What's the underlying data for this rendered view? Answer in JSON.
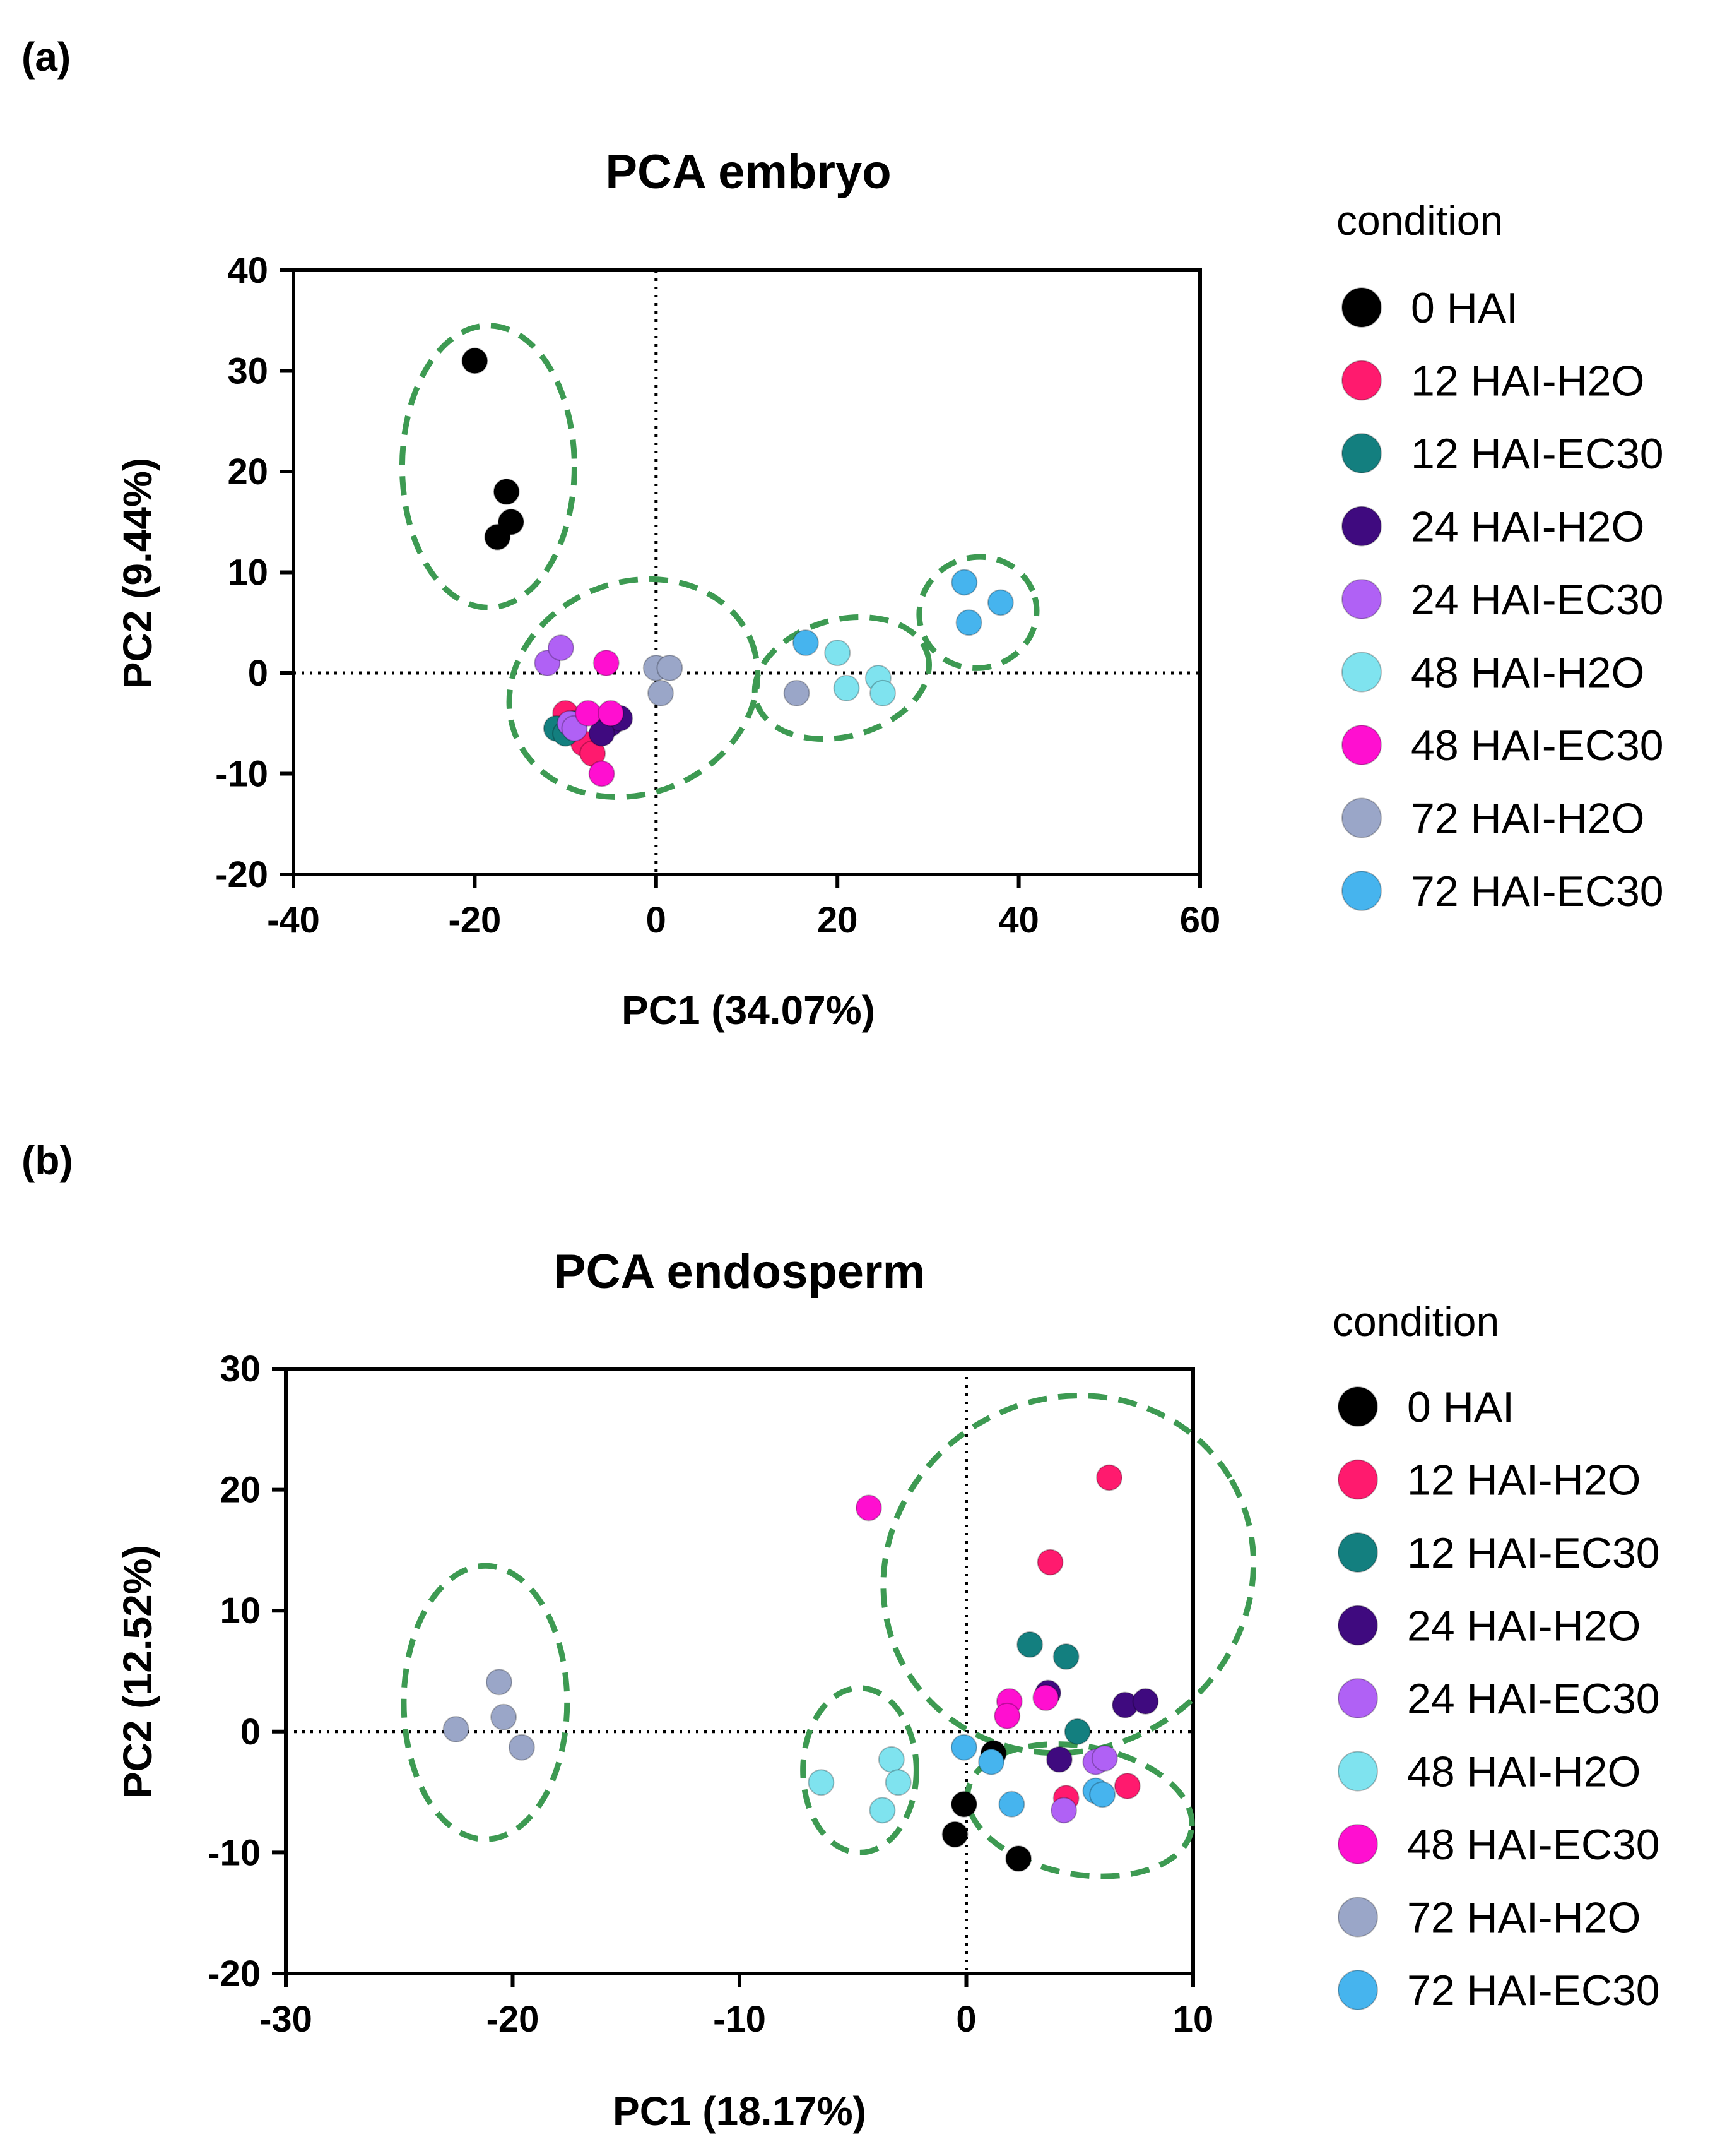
{
  "chart_data": [
    {
      "panel": "(a)",
      "type": "scatter",
      "title": "PCA embryo",
      "xlabel": "PC1 (34.07%)",
      "ylabel": "PC2 (9.44%)",
      "xlim": [
        -40,
        60
      ],
      "ylim": [
        -20,
        40
      ],
      "xticks": [
        -40,
        -20,
        0,
        20,
        40,
        60
      ],
      "yticks": [
        -20,
        -10,
        0,
        10,
        20,
        30,
        40
      ],
      "zero_lines": "dotted",
      "legend": {
        "title": "condition",
        "position": "right"
      },
      "series": [
        {
          "name": "0 HAI",
          "color": "#000000",
          "points": [
            [
              -20,
              31
            ],
            [
              -16.5,
              18
            ],
            [
              -16,
              15
            ],
            [
              -17.5,
              13.5
            ]
          ]
        },
        {
          "name": "12 HAI-H2O",
          "color": "#ff1a6e",
          "points": [
            [
              -10,
              -4
            ],
            [
              -8,
              -7
            ],
            [
              -7,
              -8
            ]
          ]
        },
        {
          "name": "12 HAI-EC30",
          "color": "#137f7f",
          "points": [
            [
              -11,
              -5.5
            ],
            [
              -10,
              -6
            ],
            [
              -9,
              -5
            ]
          ]
        },
        {
          "name": "24 HAI-H2O",
          "color": "#3f0a7f",
          "points": [
            [
              -5,
              -5
            ],
            [
              -4,
              -4.5
            ],
            [
              -6,
              -6
            ]
          ]
        },
        {
          "name": "24 HAI-EC30",
          "color": "#b061f5",
          "points": [
            [
              -12,
              1
            ],
            [
              -10.5,
              2.5
            ],
            [
              -9.5,
              -5
            ],
            [
              -9,
              -5.5
            ]
          ]
        },
        {
          "name": "48 HAI-H2O",
          "color": "#7fe3ef",
          "points": [
            [
              20,
              2
            ],
            [
              21,
              -1.5
            ],
            [
              24.5,
              -0.5
            ],
            [
              25,
              -2
            ]
          ]
        },
        {
          "name": "48 HAI-EC30",
          "color": "#ff0fd0",
          "points": [
            [
              -5.5,
              1
            ],
            [
              -7.5,
              -4
            ],
            [
              -5,
              -4
            ],
            [
              -6,
              -10
            ]
          ]
        },
        {
          "name": "72 HAI-H2O",
          "color": "#9aa6c8",
          "points": [
            [
              0,
              0.5
            ],
            [
              1.5,
              0.5
            ],
            [
              0.5,
              -2
            ],
            [
              15.5,
              -2
            ]
          ]
        },
        {
          "name": "72 HAI-EC30",
          "color": "#46b4ee",
          "points": [
            [
              16.5,
              3
            ],
            [
              34,
              9
            ],
            [
              34.5,
              5
            ],
            [
              38,
              7
            ]
          ]
        }
      ]
    },
    {
      "panel": "(b)",
      "type": "scatter",
      "title": "PCA endosperm",
      "xlabel": "PC1 (18.17%)",
      "ylabel": "PC2 (12.52%)",
      "xlim": [
        -30,
        10
      ],
      "ylim": [
        -20,
        30
      ],
      "xticks": [
        -30,
        -20,
        -10,
        0,
        10
      ],
      "yticks": [
        -20,
        -10,
        0,
        10,
        20,
        30
      ],
      "zero_lines": "dotted",
      "legend": {
        "title": "condition",
        "position": "right"
      },
      "series": [
        {
          "name": "0 HAI",
          "color": "#000000",
          "points": [
            [
              1.2,
              -1.8
            ],
            [
              -0.1,
              -6
            ],
            [
              -0.5,
              -8.5
            ],
            [
              2.3,
              -10.5
            ]
          ]
        },
        {
          "name": "12 HAI-H2O",
          "color": "#ff1a6e",
          "points": [
            [
              6.3,
              21
            ],
            [
              3.7,
              14
            ],
            [
              4.4,
              -5.5
            ],
            [
              7.1,
              -4.5
            ]
          ]
        },
        {
          "name": "12 HAI-EC30",
          "color": "#137f7f",
          "points": [
            [
              2.8,
              7.2
            ],
            [
              4.4,
              6.2
            ],
            [
              4.9,
              0
            ]
          ]
        },
        {
          "name": "24 HAI-H2O",
          "color": "#3f0a7f",
          "points": [
            [
              3.6,
              3.2
            ],
            [
              7.0,
              2.2
            ],
            [
              7.9,
              2.5
            ],
            [
              4.1,
              -2.3
            ]
          ]
        },
        {
          "name": "24 HAI-EC30",
          "color": "#b061f5",
          "points": [
            [
              5.7,
              -2.5
            ],
            [
              6.1,
              -2.2
            ],
            [
              4.3,
              -6.5
            ]
          ]
        },
        {
          "name": "48 HAI-H2O",
          "color": "#7fe3ef",
          "points": [
            [
              -6.4,
              -4.2
            ],
            [
              -3.3,
              -2.3
            ],
            [
              -3.0,
              -4.2
            ],
            [
              -3.7,
              -6.5
            ]
          ]
        },
        {
          "name": "48 HAI-EC30",
          "color": "#ff0fd0",
          "points": [
            [
              -4.3,
              18.5
            ],
            [
              1.9,
              2.5
            ],
            [
              1.8,
              1.3
            ],
            [
              3.5,
              2.8
            ]
          ]
        },
        {
          "name": "72 HAI-H2O",
          "color": "#9aa6c8",
          "points": [
            [
              -22.5,
              0.2
            ],
            [
              -20.6,
              4.1
            ],
            [
              -20.4,
              1.2
            ],
            [
              -19.6,
              -1.3
            ]
          ]
        },
        {
          "name": "72 HAI-EC30",
          "color": "#46b4ee",
          "points": [
            [
              -0.1,
              -1.3
            ],
            [
              1.1,
              -2.5
            ],
            [
              2.0,
              -6
            ],
            [
              5.7,
              -4.9
            ],
            [
              6.0,
              -5.2
            ]
          ]
        }
      ]
    }
  ]
}
